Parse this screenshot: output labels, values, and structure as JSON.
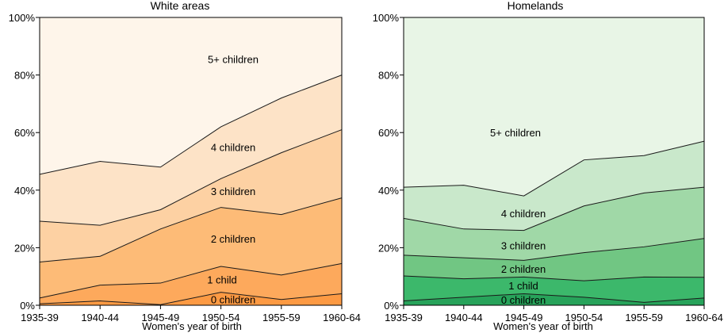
{
  "chart_data": [
    {
      "type": "area",
      "stacked": true,
      "title": "White areas",
      "xlabel": "Women's year of birth",
      "ylabel": "",
      "ylim": [
        0,
        100
      ],
      "y_ticks": [
        "0%",
        "20%",
        "40%",
        "60%",
        "80%",
        "100%"
      ],
      "categories": [
        "1935-39",
        "1940-44",
        "1945-49",
        "1950-54",
        "1955-59",
        "1960-64"
      ],
      "series": [
        {
          "name": "0 children",
          "values": [
            0.5,
            1.5,
            0.2,
            4.5,
            2.0,
            4.0
          ],
          "color": "#fd9a43"
        },
        {
          "name": "1 child",
          "values": [
            2.0,
            5.5,
            7.5,
            9.0,
            8.5,
            10.5
          ],
          "color": "#fda95c"
        },
        {
          "name": "2 children",
          "values": [
            12.5,
            10.0,
            18.8,
            20.5,
            21.0,
            22.8
          ],
          "color": "#fdbb77"
        },
        {
          "name": "3 children",
          "values": [
            14.2,
            10.8,
            6.7,
            10.0,
            21.5,
            23.7
          ],
          "color": "#fdd1a3"
        },
        {
          "name": "4 children",
          "values": [
            16.3,
            22.2,
            14.8,
            18.0,
            19.0,
            19.0
          ],
          "color": "#fde3c7"
        },
        {
          "name": "5+ children",
          "values": [
            54.5,
            50.0,
            52.0,
            38.0,
            28.0,
            20.0
          ],
          "color": "#fef5ea"
        }
      ]
    },
    {
      "type": "area",
      "stacked": true,
      "title": "Homelands",
      "xlabel": "Women's year of birth",
      "ylabel": "",
      "ylim": [
        0,
        100
      ],
      "y_ticks": [
        "0%",
        "20%",
        "40%",
        "60%",
        "80%",
        "100%"
      ],
      "categories": [
        "1935-39",
        "1940-44",
        "1945-49",
        "1950-54",
        "1955-59",
        "1960-64"
      ],
      "series": [
        {
          "name": "0 children",
          "values": [
            1.5,
            2.8,
            4.0,
            2.8,
            1.0,
            2.5
          ],
          "color": "#27a35a"
        },
        {
          "name": "1 child",
          "values": [
            8.7,
            6.4,
            5.8,
            5.7,
            8.8,
            7.2
          ],
          "color": "#3cb86b"
        },
        {
          "name": "2 children",
          "values": [
            7.2,
            7.3,
            5.8,
            9.8,
            10.5,
            13.5
          ],
          "color": "#71c683"
        },
        {
          "name": "3 children",
          "values": [
            12.8,
            10.0,
            10.4,
            16.2,
            18.7,
            17.8
          ],
          "color": "#a0d8a7"
        },
        {
          "name": "4 children",
          "values": [
            10.8,
            15.2,
            12.0,
            16.0,
            13.0,
            16.0
          ],
          "color": "#c9e8cb"
        },
        {
          "name": "5+ children",
          "values": [
            59.0,
            58.3,
            62.0,
            49.5,
            48.0,
            43.0
          ],
          "color": "#e8f5e6"
        }
      ]
    }
  ]
}
